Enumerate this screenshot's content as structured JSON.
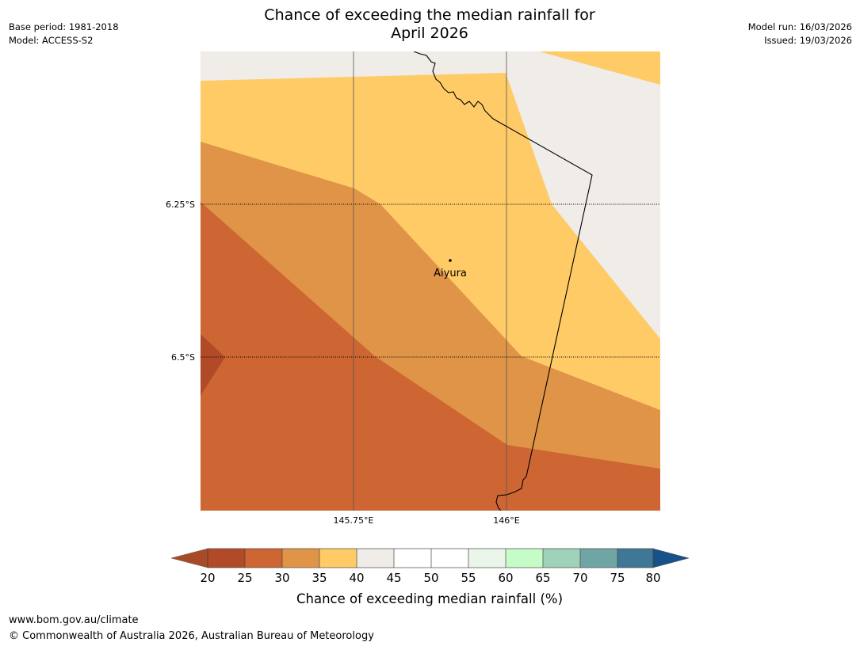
{
  "title": {
    "line1": "Chance of exceeding the median rainfall for",
    "line2": "April 2026"
  },
  "meta": {
    "base_period": "Base period: 1981-2018",
    "model": "Model: ACCESS-S2",
    "model_run": "Model run: 16/03/2026",
    "issued": "Issued: 19/03/2026"
  },
  "map": {
    "lat_labels": [
      "6.25°S",
      "6.5°S"
    ],
    "lon_labels": [
      "145.75°E",
      "146°E"
    ],
    "place": "Aiyura",
    "colors": {
      "below_20": "#a94a26",
      "c20_25": "#b14b27",
      "c25_30": "#cd6632",
      "c30_35": "#e09447",
      "c35_40": "#fecb67",
      "c40_45": "#f0ece7",
      "c45_55": "#ffffff",
      "c55_60": "#e9f6e9",
      "c60_65": "#c6fcc8",
      "c65_70": "#9fd2b9",
      "c70_75": "#6fa6a5",
      "c75_80": "#3f7796",
      "above_80": "#165189"
    }
  },
  "colorbar": {
    "ticks": [
      "20",
      "25",
      "30",
      "35",
      "40",
      "45",
      "50",
      "55",
      "60",
      "65",
      "70",
      "75",
      "80"
    ],
    "label": "Chance of exceeding median rainfall (%)"
  },
  "footer": {
    "url": "www.bom.gov.au/climate",
    "copyright": "© Commonwealth of Australia 2026, Australian Bureau of Meteorology"
  }
}
